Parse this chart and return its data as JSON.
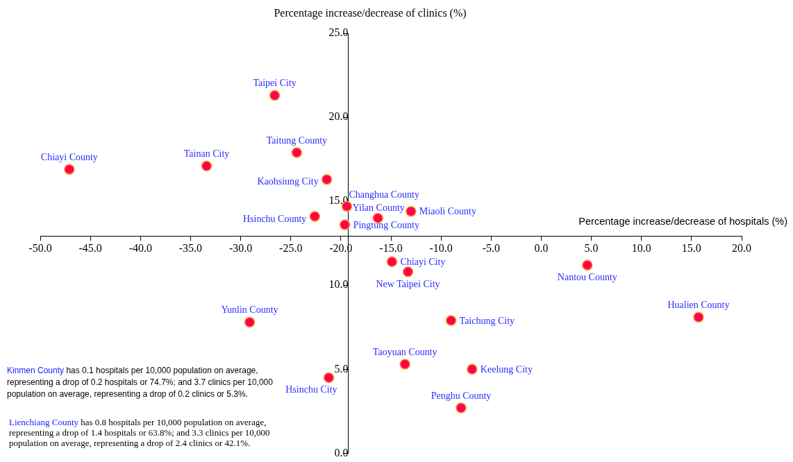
{
  "chart_data": {
    "type": "scatter",
    "xlabel": "Percentage increase/decrease of hospitals (%)",
    "ylabel": "Percentage increase/decrease of clinics (%)",
    "xlim": [
      -50,
      20
    ],
    "xticks": [
      {
        "value": -50,
        "label": "-50.0"
      },
      {
        "value": -45,
        "label": "-45.0"
      },
      {
        "value": -40,
        "label": "-40.0"
      },
      {
        "value": -35,
        "label": "-35.0"
      },
      {
        "value": -30,
        "label": "-30.0"
      },
      {
        "value": -25,
        "label": "-25.0"
      },
      {
        "value": -20,
        "label": "-20.0"
      },
      {
        "value": -15,
        "label": "-15.0"
      },
      {
        "value": -10,
        "label": "-10.0"
      },
      {
        "value": -5,
        "label": "-5.0"
      },
      {
        "value": 0,
        "label": "0.0"
      },
      {
        "value": 5,
        "label": "5.0"
      },
      {
        "value": 10,
        "label": "10.0"
      },
      {
        "value": 15,
        "label": "15.0"
      },
      {
        "value": 20,
        "label": "20.0"
      }
    ],
    "ylim": [
      0,
      25
    ],
    "yticks": [
      {
        "value": 0,
        "label": "0.0"
      },
      {
        "value": 5,
        "label": "5.0"
      },
      {
        "value": 10,
        "label": "10.0"
      },
      {
        "value": 15,
        "label": "15.0"
      },
      {
        "value": 20,
        "label": "20.0"
      },
      {
        "value": 25,
        "label": "25.0"
      }
    ],
    "marker": "circle",
    "series": [
      {
        "name": "Taipei City",
        "color": "#ff0055",
        "x": [
          -26.6
        ],
        "values": [
          21.3
        ]
      },
      {
        "name": "Chiayi County",
        "color": "#ff0055",
        "x": [
          -47.1
        ],
        "values": [
          16.9
        ]
      },
      {
        "name": "Tainan City",
        "color": "#ff0055",
        "x": [
          -33.4
        ],
        "values": [
          17.1
        ]
      },
      {
        "name": "Taitung County",
        "color": "#ff0055",
        "x": [
          -24.4
        ],
        "values": [
          17.9
        ]
      },
      {
        "name": "Kaohsiung City",
        "color": "#ff0055",
        "x": [
          -21.4
        ],
        "values": [
          16.3
        ]
      },
      {
        "name": "Changhua County",
        "color": "#ff0055",
        "x": [
          -19.4
        ],
        "values": [
          14.7
        ]
      },
      {
        "name": "Yilan County",
        "color": "#ff0055",
        "x": [
          -16.3
        ],
        "values": [
          14.0
        ]
      },
      {
        "name": "Miaoli County",
        "color": "#ff0055",
        "x": [
          -13.0
        ],
        "values": [
          14.4
        ]
      },
      {
        "name": "Hsinchu County",
        "color": "#ff0055",
        "x": [
          -22.6
        ],
        "values": [
          14.1
        ]
      },
      {
        "name": "Pingtung County",
        "color": "#ff0055",
        "x": [
          -19.6
        ],
        "values": [
          13.6
        ]
      },
      {
        "name": "Chiayi City",
        "color": "#ff0055",
        "x": [
          -14.9
        ],
        "values": [
          11.4
        ]
      },
      {
        "name": "New Taipei City",
        "color": "#ff0055",
        "x": [
          -13.3
        ],
        "values": [
          10.8
        ]
      },
      {
        "name": "Nantou County",
        "color": "#ff0055",
        "x": [
          4.6
        ],
        "values": [
          11.2
        ]
      },
      {
        "name": "Hualien County",
        "color": "#ff0055",
        "x": [
          15.7
        ],
        "values": [
          8.1
        ]
      },
      {
        "name": "Yunlin County",
        "color": "#ff0055",
        "x": [
          -29.1
        ],
        "values": [
          7.8
        ]
      },
      {
        "name": "Taichung City",
        "color": "#ff0055",
        "x": [
          -9.0
        ],
        "values": [
          7.9
        ]
      },
      {
        "name": "Taoyuan County",
        "color": "#ff0055",
        "x": [
          -13.6
        ],
        "values": [
          5.3
        ]
      },
      {
        "name": "Keelung City",
        "color": "#ff0055",
        "x": [
          -6.9
        ],
        "values": [
          5.0
        ]
      },
      {
        "name": "Hsinchu City",
        "color": "#ff0055",
        "x": [
          -21.2
        ],
        "values": [
          4.5
        ]
      },
      {
        "name": "Penghu County",
        "color": "#ff0055",
        "x": [
          -8.0
        ],
        "values": [
          2.7
        ]
      }
    ],
    "annotations": [
      "Kinmen County has 0.1 hospitals per 10,000 population on average, representing a drop of 0.2 hospitals or 74.7%; and 3.7 clinics per 10,000 population on average, representing a drop of 0.2 clinics or 5.3%.",
      "Lienchiang County has 0.8 hospitals per 10,000 population on average, representing a drop of 1.4 hospitals or 63.8%; and 3.3 clinics per 10,000 population on average, representing a drop of 2.4 clinics or 42.1%."
    ]
  }
}
